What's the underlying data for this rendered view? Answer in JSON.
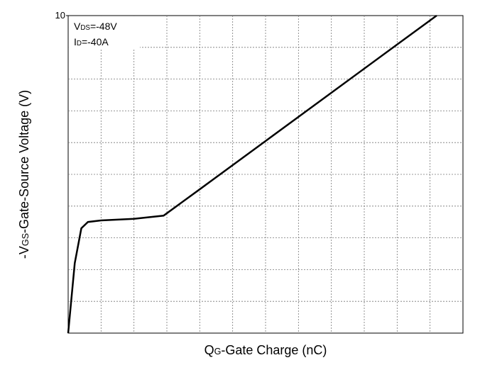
{
  "chart_data": {
    "type": "line",
    "x_label": {
      "main": "Q",
      "sub": "G",
      "rest": "-Gate Charge (nC)"
    },
    "y_label": {
      "main": "-V",
      "sub": "GS",
      "rest": "-Gate-Source Voltage (V)"
    },
    "annotations": [
      {
        "main": "V",
        "sub": "DS",
        "rest": "=-48V"
      },
      {
        "main": "I",
        "sub": "D",
        "rest": "=-40A"
      }
    ],
    "xlim": [
      0,
      120
    ],
    "ylim": [
      0,
      10
    ],
    "yticks": [
      10
    ],
    "grid": true,
    "series": [
      {
        "color": "#000000",
        "x": [
          0,
          2,
          4,
          6,
          10,
          20,
          29,
          40,
          60,
          80,
          100,
          112
        ],
        "values": [
          0,
          2.2,
          3.3,
          3.5,
          3.55,
          3.6,
          3.7,
          4.53,
          6.05,
          7.57,
          9.09,
          10
        ]
      }
    ]
  }
}
